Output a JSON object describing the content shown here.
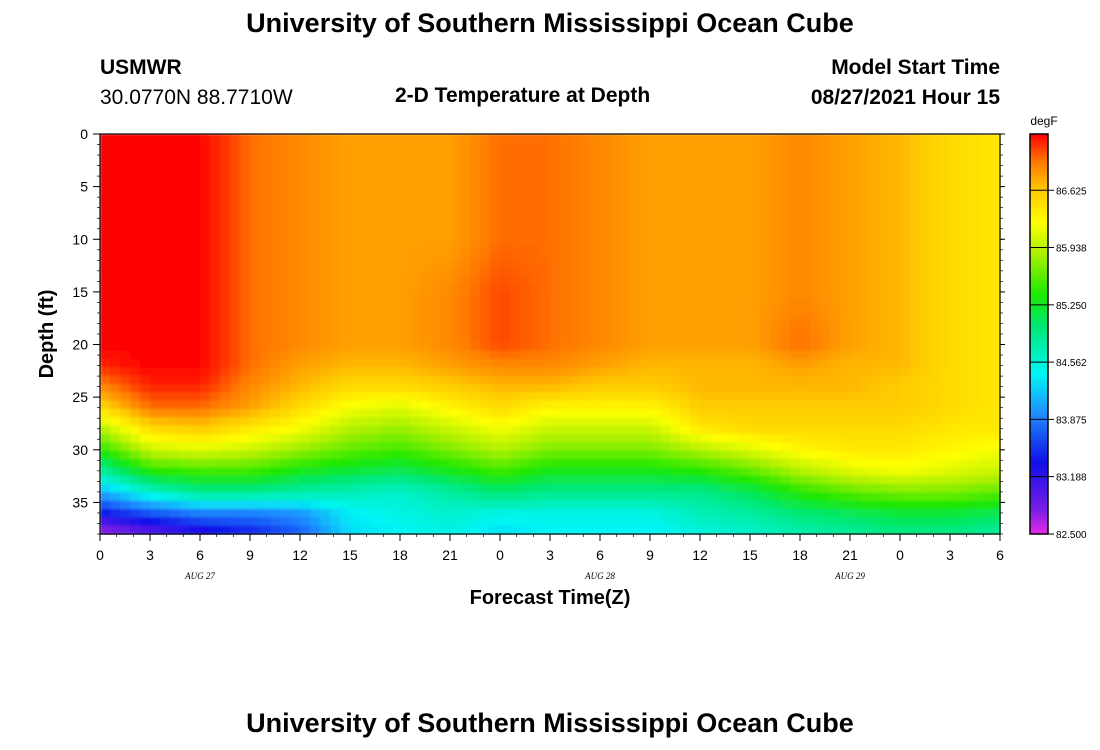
{
  "header": {
    "title": "University of Southern Mississippi Ocean Cube",
    "station": "USMWR",
    "coords": "30.0770N  88.7710W",
    "subtitle": "2-D Temperature at Depth",
    "model_start_label": "Model Start Time",
    "model_start_value": "08/27/2021 Hour 15"
  },
  "footer": {
    "title": "University of Southern Mississippi Ocean Cube"
  },
  "colorbar": {
    "unit": "degF",
    "ticks": [
      "82.500",
      "83.188",
      "83.875",
      "84.562",
      "85.250",
      "85.938",
      "86.625"
    ]
  },
  "chart_data": {
    "type": "heatmap",
    "title": "2-D Temperature at Depth",
    "xlabel": "Forecast Time(Z)",
    "ylabel": "Depth (ft)",
    "x_tick_labels": [
      "0",
      "3",
      "6",
      "9",
      "12",
      "15",
      "18",
      "21",
      "0",
      "3",
      "6",
      "9",
      "12",
      "15",
      "18",
      "21",
      "0",
      "3",
      "6"
    ],
    "date_labels": [
      {
        "label": "AUG  27",
        "hour": 6
      },
      {
        "label": "AUG  28",
        "hour": 30
      },
      {
        "label": "AUG  29",
        "hour": 45
      }
    ],
    "x_range_hours": [
      0,
      54
    ],
    "y_range_ft": [
      0,
      38
    ],
    "y_ticks": [
      0,
      5,
      10,
      15,
      20,
      25,
      30,
      35
    ],
    "color_range_degF": [
      82.5,
      87.3
    ],
    "columns_hours": [
      0,
      3,
      6,
      9,
      12,
      15,
      18,
      21,
      24,
      27,
      30,
      33,
      36,
      39,
      42,
      45,
      48,
      51,
      54
    ],
    "rows_depth_ft": [
      0,
      5,
      10,
      15,
      20,
      22,
      24,
      26,
      28,
      30,
      32,
      34,
      36,
      38
    ],
    "temperature_degF": [
      [
        87.3,
        87.3,
        87.3,
        87.0,
        86.9,
        86.8,
        86.8,
        86.8,
        87.0,
        87.0,
        86.9,
        86.8,
        86.8,
        86.8,
        86.9,
        86.8,
        86.7,
        86.5,
        86.4
      ],
      [
        87.3,
        87.3,
        87.3,
        87.0,
        86.9,
        86.8,
        86.8,
        86.8,
        87.0,
        87.0,
        86.9,
        86.8,
        86.8,
        86.8,
        86.9,
        86.8,
        86.7,
        86.5,
        86.4
      ],
      [
        87.3,
        87.3,
        87.3,
        87.0,
        86.9,
        86.8,
        86.8,
        86.8,
        87.0,
        87.0,
        86.9,
        86.8,
        86.8,
        86.8,
        86.9,
        86.8,
        86.7,
        86.5,
        86.4
      ],
      [
        87.3,
        87.3,
        87.3,
        87.0,
        86.9,
        86.8,
        86.8,
        86.9,
        87.1,
        87.0,
        86.9,
        86.8,
        86.8,
        86.8,
        86.9,
        86.8,
        86.7,
        86.5,
        86.4
      ],
      [
        87.3,
        87.3,
        87.3,
        87.0,
        86.9,
        86.8,
        86.8,
        86.9,
        87.1,
        87.0,
        86.9,
        86.8,
        86.8,
        86.8,
        87.0,
        86.8,
        86.7,
        86.5,
        86.4
      ],
      [
        87.2,
        87.3,
        87.3,
        87.0,
        86.8,
        86.7,
        86.7,
        86.8,
        86.9,
        86.9,
        86.8,
        86.7,
        86.7,
        86.7,
        86.8,
        86.7,
        86.7,
        86.5,
        86.4
      ],
      [
        86.9,
        87.2,
        87.2,
        86.9,
        86.7,
        86.5,
        86.5,
        86.6,
        86.7,
        86.7,
        86.6,
        86.6,
        86.7,
        86.7,
        86.7,
        86.7,
        86.6,
        86.5,
        86.4
      ],
      [
        86.5,
        87.0,
        87.0,
        86.8,
        86.5,
        86.2,
        86.1,
        86.3,
        86.5,
        86.3,
        86.3,
        86.3,
        86.6,
        86.6,
        86.6,
        86.6,
        86.6,
        86.5,
        86.4
      ],
      [
        85.9,
        86.5,
        86.6,
        86.4,
        86.2,
        85.9,
        85.8,
        86.0,
        86.2,
        86.0,
        86.0,
        86.0,
        86.4,
        86.5,
        86.5,
        86.5,
        86.5,
        86.4,
        86.4
      ],
      [
        85.4,
        86.0,
        86.1,
        86.0,
        85.8,
        85.6,
        85.5,
        85.7,
        85.9,
        85.7,
        85.7,
        85.7,
        85.9,
        86.1,
        86.3,
        86.4,
        86.4,
        86.3,
        86.2
      ],
      [
        84.8,
        85.4,
        85.5,
        85.5,
        85.3,
        85.2,
        85.1,
        85.3,
        85.5,
        85.3,
        85.3,
        85.3,
        85.4,
        85.6,
        85.9,
        86.1,
        86.2,
        86.1,
        86.0
      ],
      [
        84.1,
        84.6,
        84.9,
        84.9,
        84.8,
        84.7,
        84.6,
        84.8,
        85.0,
        84.9,
        84.9,
        84.9,
        84.9,
        85.1,
        85.4,
        85.6,
        85.7,
        85.7,
        85.6
      ],
      [
        83.4,
        83.7,
        83.9,
        83.9,
        84.0,
        84.4,
        84.5,
        84.6,
        84.5,
        84.5,
        84.5,
        84.5,
        84.7,
        84.8,
        85.0,
        85.1,
        85.2,
        85.2,
        85.1
      ],
      [
        82.6,
        82.9,
        83.2,
        83.4,
        83.7,
        84.3,
        84.4,
        84.5,
        84.3,
        84.4,
        84.4,
        84.4,
        84.5,
        84.6,
        84.7,
        84.8,
        84.9,
        84.9,
        84.8
      ]
    ]
  }
}
